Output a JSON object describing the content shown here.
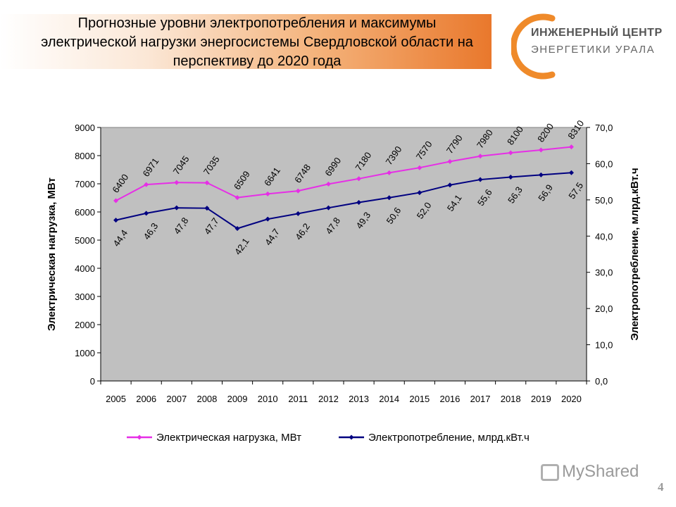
{
  "slide": {
    "title": "Прогнозные уровни электропотребления и максимумы электрической нагрузки энергосистемы Свердловской области на перспективу до 2020 года",
    "logo_line1": "ИНЖЕНЕРНЫЙ ЦЕНТР",
    "logo_line2": "ЭНЕРГЕТИКИ УРАЛА",
    "watermark": "MyShared",
    "page_number": "4"
  },
  "colors": {
    "load": "#e62ee6",
    "consumption": "#000080",
    "plot_bg": "#c0c0c0",
    "logo_accent": "#ef8a2a"
  },
  "chart_data": {
    "type": "line",
    "categories": [
      "2005",
      "2006",
      "2007",
      "2008",
      "2009",
      "2010",
      "2011",
      "2012",
      "2013",
      "2014",
      "2015",
      "2016",
      "2017",
      "2018",
      "2019",
      "2020"
    ],
    "series": [
      {
        "name": "Электрическая нагрузка, МВт",
        "axis": "left",
        "values": [
          6400,
          6971,
          7045,
          7035,
          6509,
          6641,
          6748,
          6990,
          7180,
          7390,
          7570,
          7790,
          7980,
          8100,
          8200,
          8310
        ],
        "labels": [
          "6400",
          "6971",
          "7045",
          "7035",
          "6509",
          "6641",
          "6748",
          "6990",
          "7180",
          "7390",
          "7570",
          "7790",
          "7980",
          "8100",
          "8200",
          "8310"
        ]
      },
      {
        "name": "Электропотребление, млрд.кВт.ч",
        "axis": "right",
        "values": [
          44.4,
          46.3,
          47.8,
          47.7,
          42.1,
          44.7,
          46.2,
          47.8,
          49.3,
          50.6,
          52.0,
          54.1,
          55.6,
          56.3,
          56.9,
          57.5
        ],
        "labels": [
          "44,4",
          "46,3",
          "47,8",
          "47,7",
          "42,1",
          "44,7",
          "46,2",
          "47,8",
          "49,3",
          "50,6",
          "52,0",
          "54,1",
          "55,6",
          "56,3",
          "56,9",
          "57,5"
        ]
      }
    ],
    "ylabel": "Электрическая нагрузка, МВт",
    "ylabel_right": "Электропотребление, млрд.кВт.ч",
    "ylim": [
      0,
      9000
    ],
    "ylim_right": [
      0,
      70
    ],
    "yticks": [
      "0",
      "1000",
      "2000",
      "3000",
      "4000",
      "5000",
      "6000",
      "7000",
      "8000",
      "9000"
    ],
    "yticks_right": [
      "0,0",
      "10,0",
      "20,0",
      "30,0",
      "40,0",
      "50,0",
      "60,0",
      "70,0"
    ],
    "grid": false,
    "legend_position": "bottom"
  }
}
